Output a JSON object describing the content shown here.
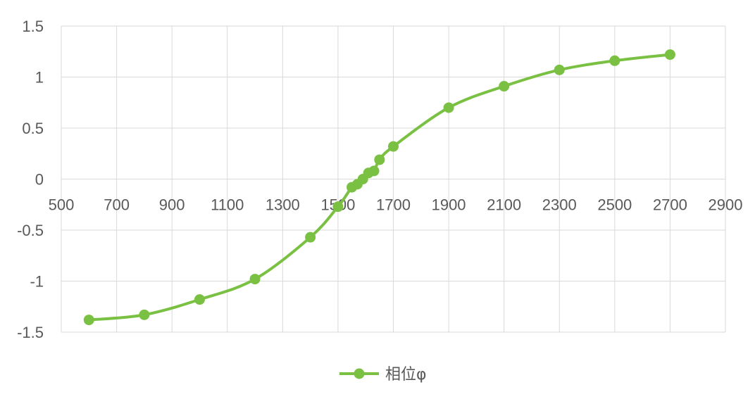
{
  "colors": {
    "series": "#7ac143",
    "grid": "#d9d9d9",
    "text": "#595959",
    "background": "#ffffff"
  },
  "chart_data": {
    "type": "line",
    "title": "",
    "xlabel": "",
    "ylabel": "",
    "xlim": [
      500,
      2900
    ],
    "ylim": [
      -1.5,
      1.5
    ],
    "x_ticks": [
      500,
      700,
      900,
      1100,
      1300,
      1500,
      1700,
      1900,
      2100,
      2300,
      2500,
      2700,
      2900
    ],
    "y_ticks": [
      1.5,
      1,
      0.5,
      0,
      -0.5,
      -1,
      -1.5
    ],
    "x_tick_labels": [
      "500",
      "700",
      "900",
      "1100",
      "1300",
      "1500",
      "1700",
      "1900",
      "2100",
      "2300",
      "2500",
      "2700",
      "2900"
    ],
    "y_tick_labels": [
      "1.5",
      "1",
      "0.5",
      "0",
      "-0.5",
      "-1",
      "-1.5"
    ],
    "grid": true,
    "smooth": true,
    "markers": true,
    "legend": {
      "position": "bottom",
      "entries": [
        "相位φ"
      ]
    },
    "series": [
      {
        "name": "相位φ",
        "x": [
          600,
          800,
          1000,
          1200,
          1400,
          1500,
          1550,
          1570,
          1590,
          1610,
          1630,
          1650,
          1700,
          1900,
          2100,
          2300,
          2500,
          2700
        ],
        "y": [
          -1.38,
          -1.33,
          -1.18,
          -0.98,
          -0.57,
          -0.27,
          -0.08,
          -0.05,
          0.0,
          0.06,
          0.08,
          0.19,
          0.32,
          0.7,
          0.91,
          1.07,
          1.16,
          1.22
        ]
      }
    ]
  }
}
